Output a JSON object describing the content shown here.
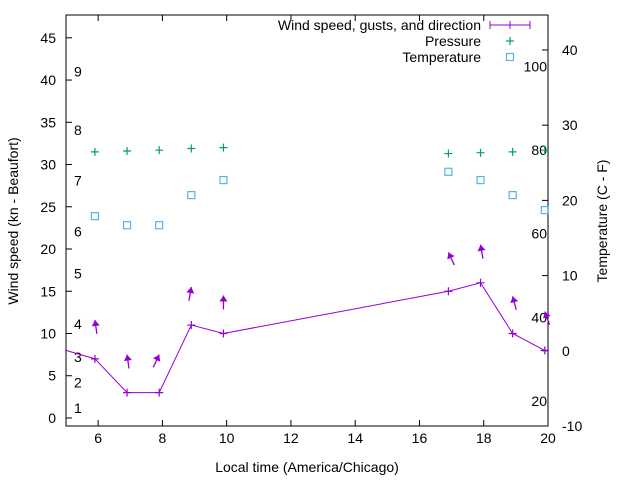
{
  "chart_data": {
    "type": "line",
    "xlabel": "Local time (America/Chicago)",
    "ylabel": "Wind speed (kn - Beaufort)",
    "y2label": "Temperature (C - F)",
    "xlim": [
      5,
      20
    ],
    "ylim": [
      -0.95,
      47.7
    ],
    "y2lim": [
      -10,
      44.65
    ],
    "x_ticks": [
      6,
      8,
      10,
      12,
      14,
      16,
      18,
      20
    ],
    "y_ticks": [
      0,
      5,
      10,
      15,
      20,
      25,
      30,
      35,
      40,
      45
    ],
    "y2_ticks": [
      -10,
      0,
      10,
      20,
      30,
      40
    ],
    "beaufort_labels": [
      {
        "label": "1",
        "y": 1.2
      },
      {
        "label": "2",
        "y": 4.2
      },
      {
        "label": "3",
        "y": 7.2
      },
      {
        "label": "4",
        "y": 11.1
      },
      {
        "label": "5",
        "y": 17.1
      },
      {
        "label": "6",
        "y": 22.1
      },
      {
        "label": "7",
        "y": 28.1
      },
      {
        "label": "8",
        "y": 34.1
      },
      {
        "label": "9",
        "y": 41.0
      }
    ],
    "fahrenheit_labels": [
      {
        "label": "20",
        "y2": -6.7
      },
      {
        "label": "40",
        "y2": 4.4
      },
      {
        "label": "60",
        "y2": 15.6
      },
      {
        "label": "80",
        "y2": 26.7
      },
      {
        "label": "100",
        "y2": 37.8
      }
    ],
    "legend": [
      "Wind speed, gusts, and direction",
      "Pressure",
      "Temperature"
    ],
    "legend_position": "top-right",
    "series": [
      {
        "name": "Wind speed, gusts, and direction",
        "color": "#9400d3",
        "x": [
          4.9,
          5.9,
          6.9,
          7.9,
          8.9,
          9.9,
          16.9,
          17.9,
          18.9,
          19.9
        ],
        "y": [
          8,
          7,
          3,
          3,
          11,
          10,
          15,
          16,
          10,
          8
        ]
      },
      {
        "name": "Gust arrows",
        "color": "#9400d3",
        "x": [
          5.9,
          6.9,
          7.9,
          8.9,
          9.9,
          16.9,
          17.9,
          18.9,
          19.9
        ],
        "gust": [
          11.6,
          7.5,
          7.5,
          15.5,
          14.5,
          19.6,
          20.5,
          14.4,
          12.6
        ],
        "direction_deg": [
          -8,
          -8,
          25,
          10,
          0,
          -25,
          -10,
          -15,
          -20
        ]
      },
      {
        "name": "Pressure",
        "color": "#009e73",
        "x": [
          5.9,
          6.9,
          7.9,
          8.9,
          9.9,
          16.9,
          17.9,
          18.9,
          19.9
        ],
        "y": [
          31.5,
          31.6,
          31.7,
          31.9,
          32.0,
          31.3,
          31.4,
          31.5,
          31.7
        ]
      },
      {
        "name": "Temperature",
        "color": "#56b4e9",
        "axis": "y2",
        "x": [
          5.9,
          6.9,
          7.9,
          8.9,
          9.9,
          16.9,
          17.9,
          18.9,
          19.9
        ],
        "y": [
          17.9,
          16.7,
          16.7,
          20.7,
          22.7,
          23.8,
          22.7,
          20.7,
          18.7
        ]
      }
    ]
  }
}
